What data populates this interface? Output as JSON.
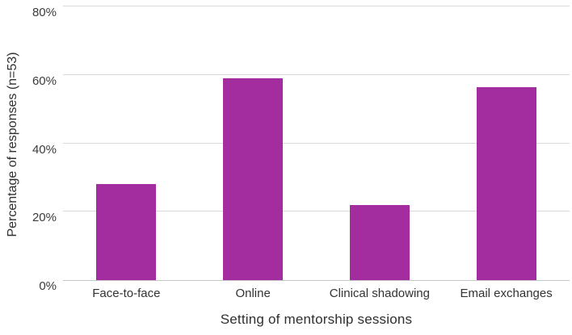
{
  "colors": {
    "bar_fill": "#a32c9e",
    "gridline": "#d9d9d9",
    "axis_line": "#c6c6c6",
    "tick_text": "#3b3b3b",
    "title_text": "#2f2f2f",
    "background": "#ffffff"
  },
  "chart_data": {
    "type": "bar",
    "title": "",
    "categories": [
      "Face-to-face",
      "Online",
      "Clinical shadowing",
      "Email exchanges"
    ],
    "values": [
      28,
      59,
      22,
      56.5
    ],
    "xlabel": "Setting of mentorship sessions",
    "ylabel": "Percentage of responses (n=53)",
    "ylim": [
      0,
      80
    ],
    "yticks": [
      {
        "value": 0,
        "label": "0%"
      },
      {
        "value": 20,
        "label": "20%"
      },
      {
        "value": 40,
        "label": "40%"
      },
      {
        "value": 60,
        "label": "60%"
      },
      {
        "value": 80,
        "label": "80%"
      }
    ],
    "grid": true,
    "legend": false,
    "bar_color": "#a32c9e"
  }
}
